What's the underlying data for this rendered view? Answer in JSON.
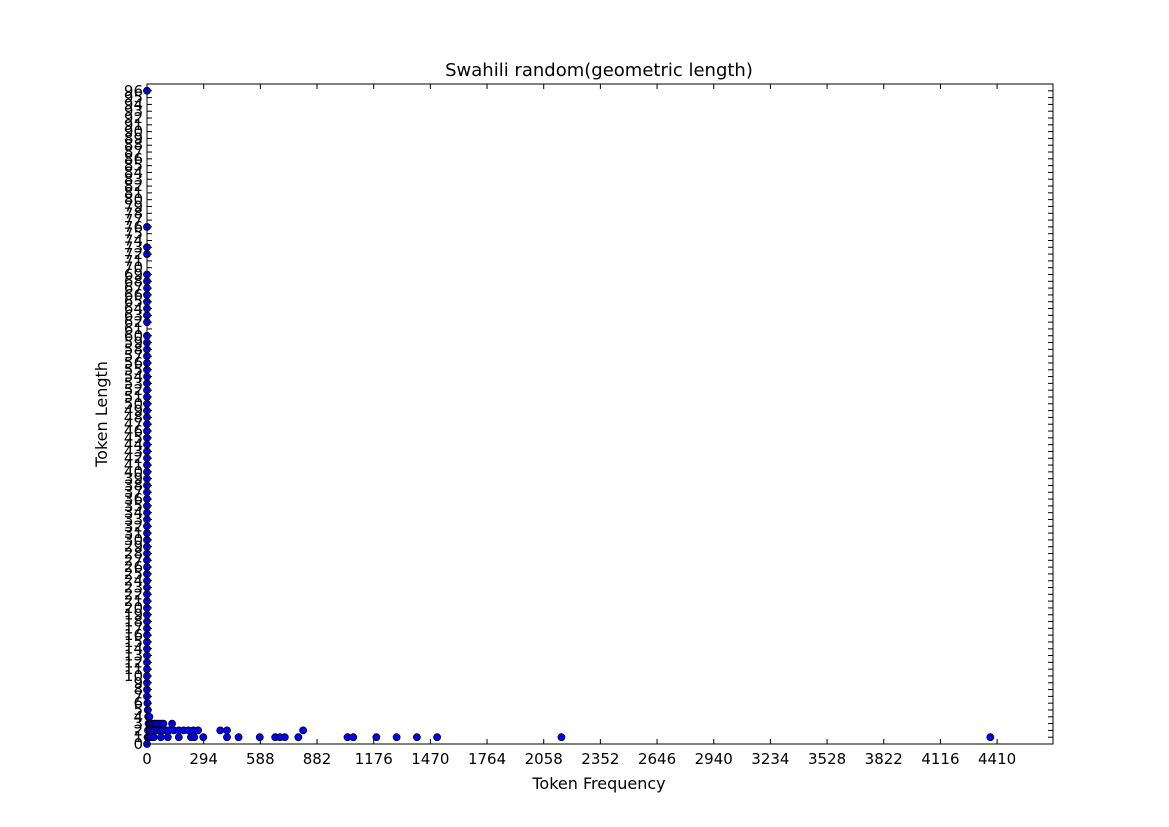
{
  "chart_data": {
    "type": "scatter",
    "title": "Swahili random(geometric length)",
    "xlabel": "Token Frequency",
    "ylabel": "Token Length",
    "xlim": [
      0,
      4700
    ],
    "ylim": [
      0,
      97
    ],
    "x_ticks": [
      0,
      294,
      588,
      882,
      1176,
      1470,
      1764,
      2058,
      2352,
      2646,
      2940,
      3234,
      3528,
      3822,
      4116,
      4410
    ],
    "y_ticks": [
      0,
      1,
      2,
      3,
      4,
      5,
      6,
      7,
      8,
      9,
      10,
      11,
      12,
      13,
      14,
      15,
      16,
      17,
      18,
      19,
      20,
      21,
      22,
      23,
      24,
      25,
      26,
      27,
      28,
      29,
      30,
      31,
      32,
      33,
      34,
      35,
      36,
      37,
      38,
      39,
      40,
      41,
      42,
      43,
      44,
      45,
      46,
      47,
      48,
      49,
      50,
      51,
      52,
      53,
      54,
      55,
      56,
      57,
      58,
      59,
      60,
      61,
      62,
      63,
      64,
      65,
      66,
      67,
      68,
      69,
      70,
      71,
      72,
      73,
      74,
      75,
      76,
      77,
      78,
      79,
      80,
      81,
      82,
      83,
      84,
      85,
      86,
      87,
      88,
      89,
      90,
      91,
      92,
      93,
      94,
      95,
      96
    ],
    "grid": false,
    "marker_color": "#0000ff",
    "points": [
      {
        "x": 0,
        "y": 96
      },
      {
        "x": 0,
        "y": 76
      },
      {
        "x": 0,
        "y": 73
      },
      {
        "x": 0,
        "y": 72
      },
      {
        "x": 0,
        "y": 69
      },
      {
        "x": 0,
        "y": 68
      },
      {
        "x": 0,
        "y": 67
      },
      {
        "x": 0,
        "y": 66
      },
      {
        "x": 0,
        "y": 65
      },
      {
        "x": 0,
        "y": 64
      },
      {
        "x": 0,
        "y": 63
      },
      {
        "x": 0,
        "y": 62
      },
      {
        "x": 0,
        "y": 60
      },
      {
        "x": 0,
        "y": 59
      },
      {
        "x": 0,
        "y": 58
      },
      {
        "x": 0,
        "y": 57
      },
      {
        "x": 0,
        "y": 56
      },
      {
        "x": 0,
        "y": 55
      },
      {
        "x": 0,
        "y": 54
      },
      {
        "x": 0,
        "y": 53
      },
      {
        "x": 0,
        "y": 52
      },
      {
        "x": 0,
        "y": 51
      },
      {
        "x": 0,
        "y": 50
      },
      {
        "x": 0,
        "y": 49
      },
      {
        "x": 0,
        "y": 48
      },
      {
        "x": 0,
        "y": 47
      },
      {
        "x": 0,
        "y": 46
      },
      {
        "x": 0,
        "y": 45
      },
      {
        "x": 0,
        "y": 44
      },
      {
        "x": 0,
        "y": 43
      },
      {
        "x": 0,
        "y": 42
      },
      {
        "x": 0,
        "y": 41
      },
      {
        "x": 0,
        "y": 40
      },
      {
        "x": 0,
        "y": 39
      },
      {
        "x": 0,
        "y": 38
      },
      {
        "x": 0,
        "y": 37
      },
      {
        "x": 0,
        "y": 36
      },
      {
        "x": 0,
        "y": 35
      },
      {
        "x": 0,
        "y": 34
      },
      {
        "x": 0,
        "y": 33
      },
      {
        "x": 0,
        "y": 32
      },
      {
        "x": 0,
        "y": 31
      },
      {
        "x": 0,
        "y": 30
      },
      {
        "x": 0,
        "y": 29
      },
      {
        "x": 0,
        "y": 28
      },
      {
        "x": 0,
        "y": 27
      },
      {
        "x": 0,
        "y": 26
      },
      {
        "x": 0,
        "y": 25
      },
      {
        "x": 0,
        "y": 24
      },
      {
        "x": 0,
        "y": 23
      },
      {
        "x": 0,
        "y": 22
      },
      {
        "x": 0,
        "y": 21
      },
      {
        "x": 0,
        "y": 20
      },
      {
        "x": 0,
        "y": 19
      },
      {
        "x": 0,
        "y": 18
      },
      {
        "x": 0,
        "y": 17
      },
      {
        "x": 0,
        "y": 16
      },
      {
        "x": 0,
        "y": 15
      },
      {
        "x": 0,
        "y": 14
      },
      {
        "x": 0,
        "y": 13
      },
      {
        "x": 0,
        "y": 12
      },
      {
        "x": 0,
        "y": 11
      },
      {
        "x": 0,
        "y": 10
      },
      {
        "x": 0,
        "y": 9
      },
      {
        "x": 0,
        "y": 8
      },
      {
        "x": 0,
        "y": 7
      },
      {
        "x": 2,
        "y": 6
      },
      {
        "x": 4,
        "y": 5
      },
      {
        "x": 6,
        "y": 4
      },
      {
        "x": 12,
        "y": 4
      },
      {
        "x": 8,
        "y": 3
      },
      {
        "x": 16,
        "y": 3
      },
      {
        "x": 24,
        "y": 3
      },
      {
        "x": 32,
        "y": 3
      },
      {
        "x": 40,
        "y": 3
      },
      {
        "x": 50,
        "y": 3
      },
      {
        "x": 62,
        "y": 3
      },
      {
        "x": 75,
        "y": 3
      },
      {
        "x": 85,
        "y": 3
      },
      {
        "x": 130,
        "y": 3
      },
      {
        "x": 5,
        "y": 2
      },
      {
        "x": 14,
        "y": 2
      },
      {
        "x": 25,
        "y": 2
      },
      {
        "x": 38,
        "y": 2
      },
      {
        "x": 52,
        "y": 2
      },
      {
        "x": 68,
        "y": 2
      },
      {
        "x": 82,
        "y": 2
      },
      {
        "x": 98,
        "y": 2
      },
      {
        "x": 115,
        "y": 2
      },
      {
        "x": 140,
        "y": 2
      },
      {
        "x": 165,
        "y": 2
      },
      {
        "x": 190,
        "y": 2
      },
      {
        "x": 215,
        "y": 2
      },
      {
        "x": 240,
        "y": 2
      },
      {
        "x": 265,
        "y": 2
      },
      {
        "x": 380,
        "y": 2
      },
      {
        "x": 415,
        "y": 2
      },
      {
        "x": 810,
        "y": 2
      },
      {
        "x": 3,
        "y": 1
      },
      {
        "x": 10,
        "y": 1
      },
      {
        "x": 20,
        "y": 1
      },
      {
        "x": 35,
        "y": 1
      },
      {
        "x": 72,
        "y": 1
      },
      {
        "x": 108,
        "y": 1
      },
      {
        "x": 165,
        "y": 1
      },
      {
        "x": 228,
        "y": 1
      },
      {
        "x": 245,
        "y": 1
      },
      {
        "x": 292,
        "y": 1
      },
      {
        "x": 415,
        "y": 1
      },
      {
        "x": 475,
        "y": 1
      },
      {
        "x": 585,
        "y": 1
      },
      {
        "x": 665,
        "y": 1
      },
      {
        "x": 690,
        "y": 1
      },
      {
        "x": 715,
        "y": 1
      },
      {
        "x": 785,
        "y": 1
      },
      {
        "x": 1040,
        "y": 1
      },
      {
        "x": 1070,
        "y": 1
      },
      {
        "x": 1190,
        "y": 1
      },
      {
        "x": 1295,
        "y": 1
      },
      {
        "x": 1400,
        "y": 1
      },
      {
        "x": 1505,
        "y": 1
      },
      {
        "x": 2150,
        "y": 1
      },
      {
        "x": 4375,
        "y": 1
      },
      {
        "x": 0,
        "y": 0
      }
    ]
  }
}
